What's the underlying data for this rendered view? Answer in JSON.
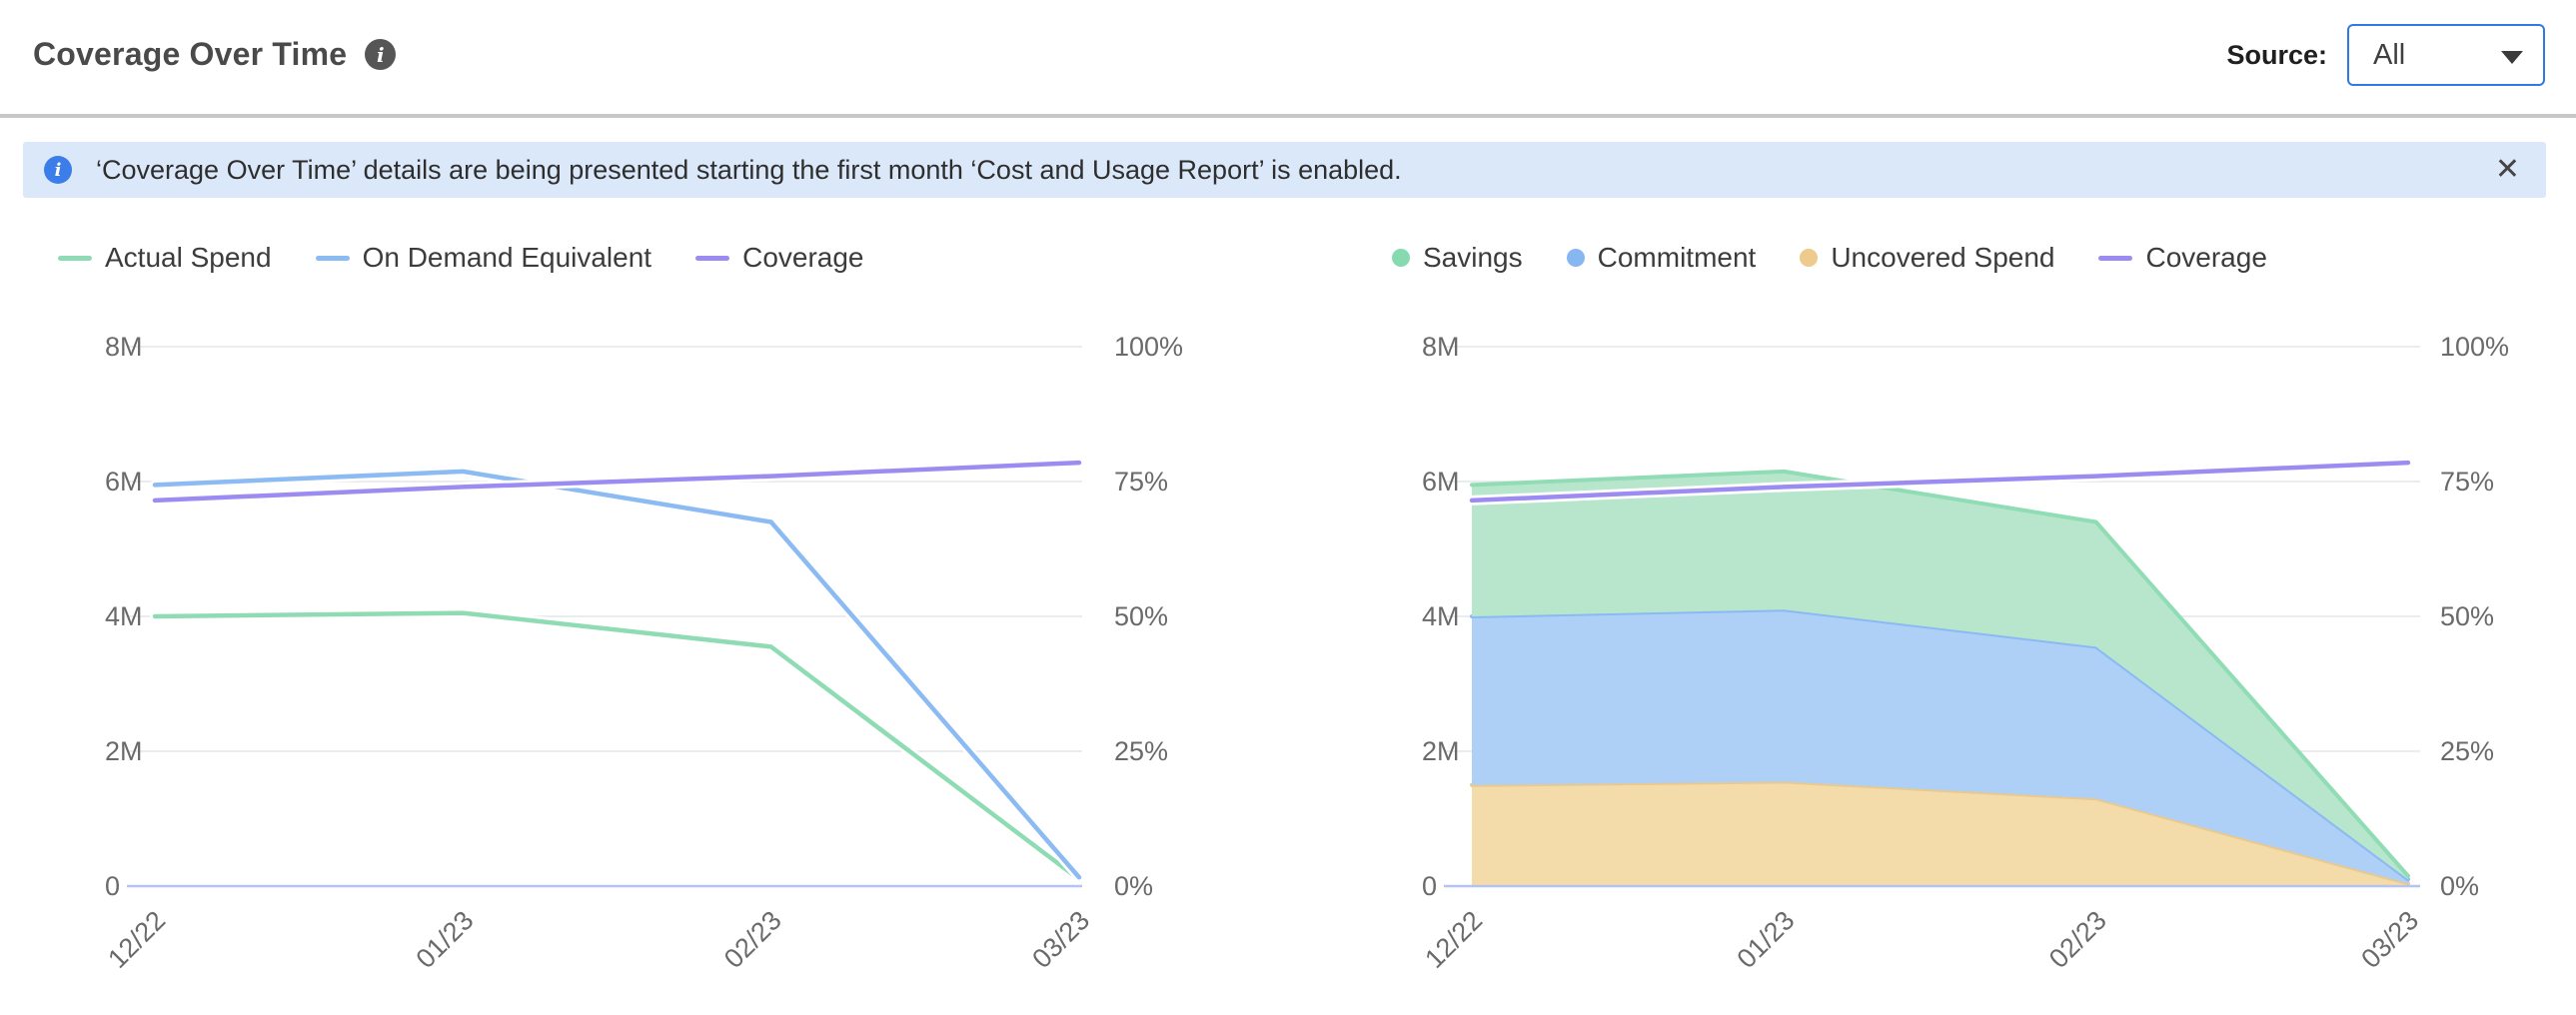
{
  "header": {
    "title": "Coverage Over Time",
    "source_label": "Source:",
    "source_value": "All"
  },
  "icons": {
    "title_info_icon": "i",
    "banner_info_icon": "i",
    "close_icon": "✕",
    "dropdown_caret_icon": "▾"
  },
  "colors": {
    "accent_blue_border": "#2f7ae5",
    "banner_bg": "#dbe8f9",
    "banner_icon_blue": "#3b7de9",
    "series_green": "#8fdcb4",
    "series_blue": "#8cbaf3",
    "series_purple": "#9c8cf2",
    "area_green_fill": "#b7e6cd",
    "area_blue_fill": "#aed0f7",
    "area_orange_fill": "#f4dcaa",
    "area_orange_edge": "#eac98f",
    "zero_axis": "#b6c3ee",
    "gridline": "#e4e5e8"
  },
  "banner": {
    "text": "‘Coverage Over Time’ details are being presented starting the first month ‘Cost and Usage Report’ is enabled.",
    "close_glyph": "✕"
  },
  "chart_data": [
    {
      "type": "line",
      "panel": "spend-vs-on-demand",
      "categories": [
        "12/22",
        "01/23",
        "02/23",
        "03/23"
      ],
      "left_axis": {
        "ticks": [
          "0",
          "2M",
          "4M",
          "6M",
          "8M"
        ],
        "max": 8,
        "unit": "millions",
        "range": [
          0,
          8000000
        ]
      },
      "right_axis": {
        "ticks": [
          "0%",
          "25%",
          "50%",
          "75%",
          "100%"
        ],
        "max": 100,
        "unit": "percent",
        "range": [
          0,
          100
        ]
      },
      "grid": true,
      "legend_position": "top-left",
      "series": [
        {
          "name": "Actual Spend",
          "kind": "line",
          "axis": "left",
          "color": "#8fdcb4",
          "unit": "M",
          "values": [
            4.0,
            4.05,
            3.55,
            0.1
          ]
        },
        {
          "name": "On Demand Equivalent",
          "kind": "line",
          "axis": "left",
          "color": "#8cbaf3",
          "unit": "M",
          "values": [
            5.95,
            6.15,
            5.4,
            0.13
          ]
        },
        {
          "name": "Coverage",
          "kind": "line",
          "axis": "right",
          "color": "#9c8cf2",
          "unit": "%",
          "values": [
            71.5,
            74,
            76,
            78.5
          ]
        }
      ],
      "legend": [
        {
          "label": "Actual Spend",
          "swatch": "line",
          "color": "#8fdcb4"
        },
        {
          "label": "On Demand Equivalent",
          "swatch": "line",
          "color": "#8cbaf3"
        },
        {
          "label": "Coverage",
          "swatch": "line",
          "color": "#9c8cf2"
        }
      ]
    },
    {
      "type": "area",
      "panel": "coverage-breakdown-stacked",
      "categories": [
        "12/22",
        "01/23",
        "02/23",
        "03/23"
      ],
      "left_axis": {
        "ticks": [
          "0",
          "2M",
          "4M",
          "6M",
          "8M"
        ],
        "max": 8,
        "unit": "millions",
        "range": [
          0,
          8000000
        ]
      },
      "right_axis": {
        "ticks": [
          "0%",
          "25%",
          "50%",
          "75%",
          "100%"
        ],
        "max": 100,
        "unit": "percent",
        "range": [
          0,
          100
        ]
      },
      "grid": true,
      "stacked": true,
      "legend_position": "top-left",
      "series": [
        {
          "name": "Uncovered Spend",
          "kind": "area",
          "axis": "left",
          "color": "#f4dcaa",
          "edge": "#eac98f",
          "unit": "M",
          "values": [
            1.5,
            1.55,
            1.3,
            0.04
          ]
        },
        {
          "name": "Commitment",
          "kind": "area",
          "axis": "left",
          "color": "#aed0f7",
          "edge": "#8bb9f3",
          "unit": "M",
          "values": [
            2.5,
            2.55,
            2.25,
            0.06
          ]
        },
        {
          "name": "Savings",
          "kind": "area",
          "axis": "left",
          "color": "#b7e6cd",
          "edge": "#90dcb4",
          "unit": "M",
          "values": [
            1.95,
            2.05,
            1.85,
            0.05
          ]
        },
        {
          "name": "Coverage",
          "kind": "line",
          "axis": "right",
          "color": "#9c8cf2",
          "unit": "%",
          "values": [
            71.5,
            74,
            76,
            78.5
          ]
        }
      ],
      "legend": [
        {
          "label": "Savings",
          "swatch": "dot",
          "color": "#85dbaf"
        },
        {
          "label": "Commitment",
          "swatch": "dot",
          "color": "#87b7f3"
        },
        {
          "label": "Uncovered Spend",
          "swatch": "dot",
          "color": "#eeca8d"
        },
        {
          "label": "Coverage",
          "swatch": "line",
          "color": "#9c8cf2"
        }
      ]
    }
  ]
}
